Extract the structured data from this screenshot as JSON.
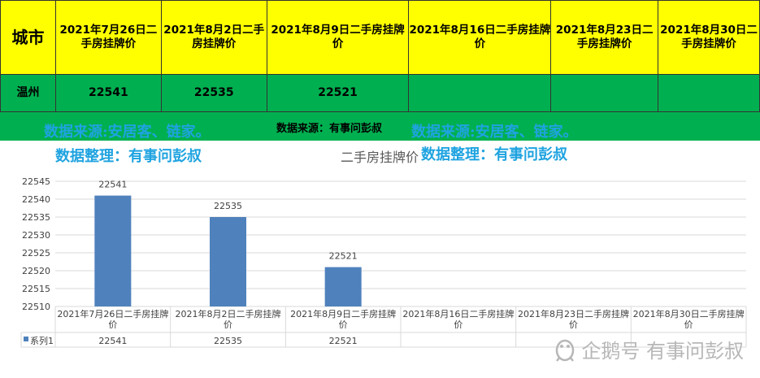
{
  "table": {
    "city_header": "城市",
    "date_headers": [
      "2021年7月26日二手房挂牌价",
      "2021年8月2日二手房挂牌价",
      "2021年8月9日二手房挂牌价",
      "2021年8月16日二手房挂牌价",
      "2021年8月23日二手房挂牌价",
      "2021年8月30日二手房挂牌价"
    ],
    "row_city": "温州",
    "row_values": [
      "22541",
      "22535",
      "22521",
      "",
      "",
      ""
    ]
  },
  "source_text": "数据来源：有事问彭叔",
  "watermarks": {
    "source": "数据来源:安居客、链家。",
    "organizer": "数据整理：有事问彭叔"
  },
  "brand_text": "企鹅号 有事问彭叔",
  "colors": {
    "header_bg": "#ffff00",
    "row_bg": "#00b050",
    "bar": "#4f81bd",
    "watermark": "#1fa3e0"
  },
  "chart_data": {
    "type": "bar",
    "title": "二手房挂牌价",
    "categories": [
      "2021年7月26日二手房挂牌价",
      "2021年8月2日二手房挂牌价",
      "2021年8月9日二手房挂牌价",
      "2021年8月16日二手房挂牌价",
      "2021年8月23日二手房挂牌价",
      "2021年8月30日二手房挂牌价"
    ],
    "series": [
      {
        "name": "系列1",
        "values": [
          22541,
          22535,
          22521,
          null,
          null,
          null
        ]
      }
    ],
    "ylim": [
      22510,
      22545
    ],
    "yticks": [
      22510,
      22515,
      22520,
      22525,
      22530,
      22535,
      22540,
      22545
    ],
    "grid": true,
    "legend": "data-table"
  }
}
